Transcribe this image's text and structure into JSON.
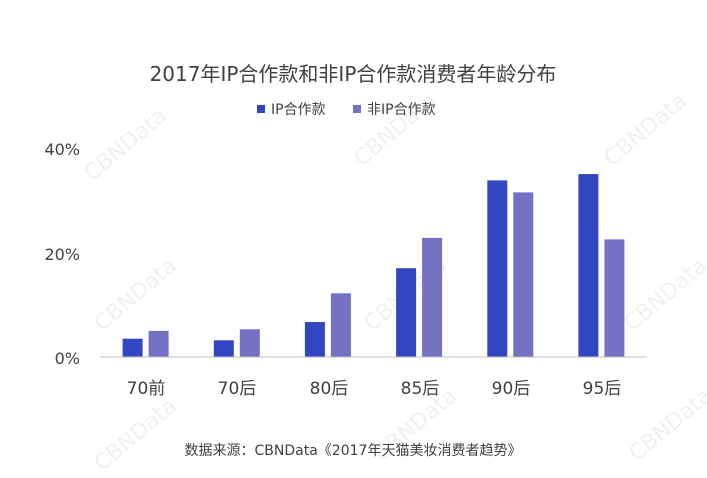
{
  "colors": {
    "series_ip": "#3346c2",
    "series_non_ip": "#7470c4",
    "axis": "#bfbfbf",
    "text": "#404040"
  },
  "watermark": "CBNData",
  "source": "数据来源：CBNData《2017年天猫美妆消费者趋势》",
  "chart_data": {
    "type": "bar",
    "title": "2017年IP合作款和非IP合作款消费者年龄分布",
    "xlabel": "",
    "ylabel": "",
    "categories": [
      "70前",
      "70后",
      "80后",
      "85后",
      "90后",
      "95后"
    ],
    "series": [
      {
        "name": "IP合作款",
        "values": [
          3.5,
          3.2,
          6.7,
          17.0,
          33.8,
          35.0
        ]
      },
      {
        "name": "非IP合作款",
        "values": [
          5.0,
          5.3,
          12.2,
          22.8,
          31.5,
          22.5
        ]
      }
    ],
    "ylim": [
      0,
      40
    ],
    "yticks": [
      "0%",
      "20%",
      "40%"
    ],
    "ytick_values": [
      0,
      20,
      40
    ],
    "grid": false,
    "legend_position": "top-center"
  }
}
